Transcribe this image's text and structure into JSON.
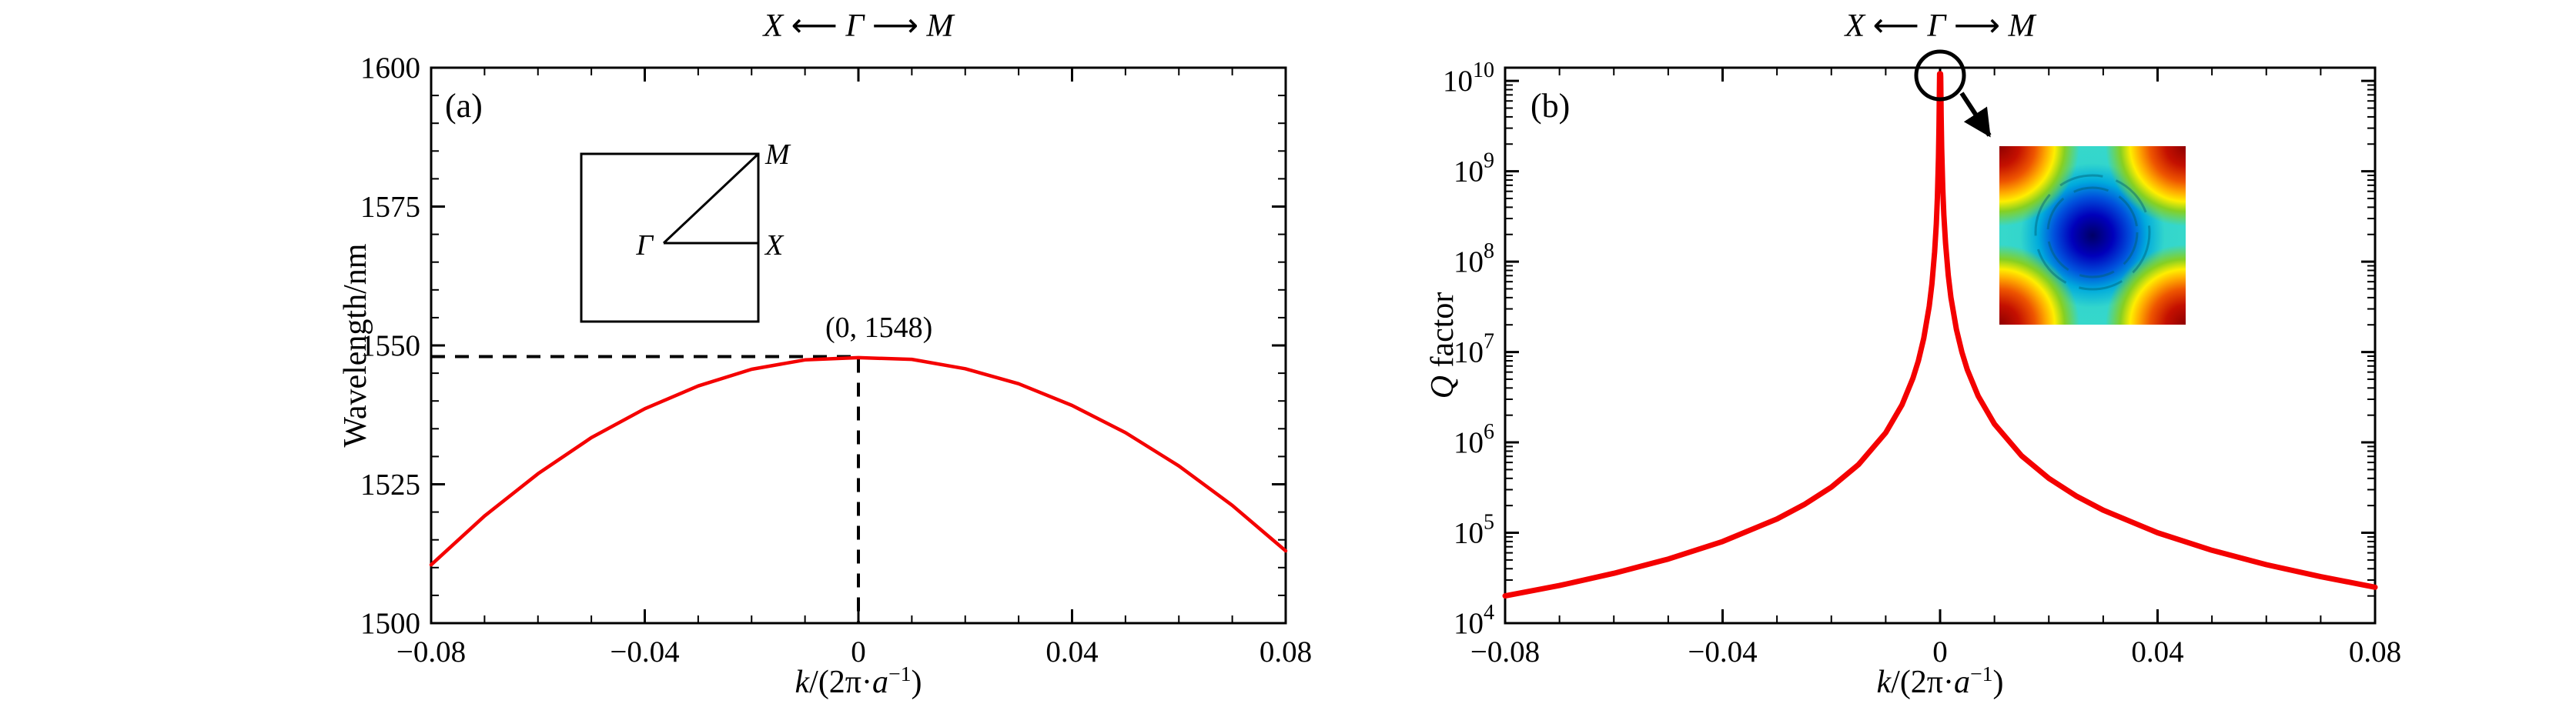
{
  "figure": {
    "background": "#ffffff",
    "accent_color": "#f40000",
    "panel_a": {
      "tag": "(a)",
      "top_label": "X ⟵ Γ ⟶ M",
      "ylabel": "Wavelength/nm",
      "xlabel_parts": [
        "k",
        "/(2π·",
        "a",
        "−1",
        ")"
      ],
      "annotation": "(0, 1548)",
      "inset": {
        "gamma": "Γ",
        "x": "X",
        "m": "M"
      }
    },
    "panel_b": {
      "tag": "(b)",
      "top_label": "X ⟵ Γ ⟶ M",
      "ylabel_parts": [
        "Q",
        " factor"
      ],
      "xlabel_parts": [
        "k",
        "/(2π·",
        "a",
        "−1",
        ")"
      ]
    }
  },
  "chart_data": [
    {
      "type": "line",
      "panel": "a",
      "title": "",
      "xlabel": "k/(2π·a⁻¹)",
      "ylabel": "Wavelength/nm",
      "xlim": [
        -0.08,
        0.08
      ],
      "ylim": [
        1500,
        1600
      ],
      "xtick_values": [
        -0.08,
        -0.04,
        0,
        0.04,
        0.08
      ],
      "xtick_labels": [
        "−0.08",
        "−0.04",
        "0",
        "0.04",
        "0.08"
      ],
      "x_minor_step": 0.01,
      "ytick_values": [
        1500,
        1525,
        1550,
        1575,
        1600
      ],
      "ytick_labels": [
        "1500",
        "1525",
        "1550",
        "1575",
        "1600"
      ],
      "y_minor_step": 5,
      "grid": false,
      "legend": "none",
      "series": [
        {
          "name": "wavelength-band",
          "color": "#f40000",
          "width": 4.5,
          "points": [
            [
              -0.08,
              1510.5
            ],
            [
              -0.07,
              1519.3
            ],
            [
              -0.06,
              1526.9
            ],
            [
              -0.05,
              1533.4
            ],
            [
              -0.04,
              1538.6
            ],
            [
              -0.03,
              1542.7
            ],
            [
              -0.02,
              1545.7
            ],
            [
              -0.01,
              1547.4
            ],
            [
              0,
              1547.8
            ],
            [
              0.01,
              1547.5
            ],
            [
              0.02,
              1545.8
            ],
            [
              0.03,
              1543.1
            ],
            [
              0.04,
              1539.2
            ],
            [
              0.05,
              1534.3
            ],
            [
              0.06,
              1528.3
            ],
            [
              0.07,
              1521.2
            ],
            [
              0.08,
              1513.0
            ]
          ]
        }
      ],
      "peak_annotation": {
        "x": 0,
        "y": 1548,
        "label": "(0, 1548)"
      },
      "brillouin_zone_inset": {
        "labels": [
          "Γ",
          "X",
          "M"
        ]
      }
    },
    {
      "type": "line",
      "panel": "b",
      "title": "",
      "xlabel": "k/(2π·a⁻¹)",
      "ylabel": "Q factor",
      "yscale": "log",
      "xlim": [
        -0.08,
        0.08
      ],
      "ylim": [
        10000,
        14000000000
      ],
      "xtick_values": [
        -0.08,
        -0.04,
        0,
        0.04,
        0.08
      ],
      "xtick_labels": [
        "−0.08",
        "−0.04",
        "0",
        "0.04",
        "0.08"
      ],
      "x_minor_step": 0.01,
      "ytick_exponents": [
        4,
        5,
        6,
        7,
        8,
        9,
        10
      ],
      "grid": false,
      "legend": "none",
      "series": [
        {
          "name": "q-factor",
          "color": "#f40000",
          "width": 7,
          "points": [
            [
              -0.08,
              20000
            ],
            [
              -0.07,
              26100
            ],
            [
              -0.06,
              35600
            ],
            [
              -0.05,
              51200
            ],
            [
              -0.04,
              80000
            ],
            [
              -0.03,
              142000
            ],
            [
              -0.025,
              205000
            ],
            [
              -0.02,
              320000
            ],
            [
              -0.015,
              569000
            ],
            [
              -0.01,
              1280000
            ],
            [
              -0.007,
              2610000
            ],
            [
              -0.005,
              5120000
            ],
            [
              -0.004,
              8000000
            ],
            [
              -0.003,
              14200000
            ],
            [
              -0.002,
              32000000
            ],
            [
              -0.0015,
              56900000
            ],
            [
              -0.001,
              128000000
            ],
            [
              -0.0007,
              261000000
            ],
            [
              -0.0005,
              512000000
            ],
            [
              -0.0003,
              1420000000
            ],
            [
              -0.0002,
              3200000000
            ],
            [
              -0.00012,
              8900000000
            ],
            [
              -8e-05,
              12000000000
            ],
            [
              0,
              12000000000
            ],
            [
              8e-05,
              12000000000
            ],
            [
              0.00012,
              11100000000
            ],
            [
              0.0002,
              4000000000
            ],
            [
              0.0003,
              1780000000
            ],
            [
              0.0005,
              640000000
            ],
            [
              0.0007,
              327000000
            ],
            [
              0.001,
              160000000
            ],
            [
              0.0015,
              71000000
            ],
            [
              0.002,
              40000000
            ],
            [
              0.003,
              17800000
            ],
            [
              0.004,
              10000000
            ],
            [
              0.005,
              6400000
            ],
            [
              0.007,
              3270000
            ],
            [
              0.01,
              1600000
            ],
            [
              0.015,
              710000
            ],
            [
              0.02,
              400000
            ],
            [
              0.025,
              256000
            ],
            [
              0.03,
              178000
            ],
            [
              0.04,
              100000
            ],
            [
              0.05,
              64000
            ],
            [
              0.06,
              44400
            ],
            [
              0.07,
              32700
            ],
            [
              0.08,
              25000
            ]
          ]
        }
      ],
      "annotations": {
        "circled_peak_at_k0": true,
        "mode_profile_inset_colormap": "jet"
      }
    }
  ]
}
